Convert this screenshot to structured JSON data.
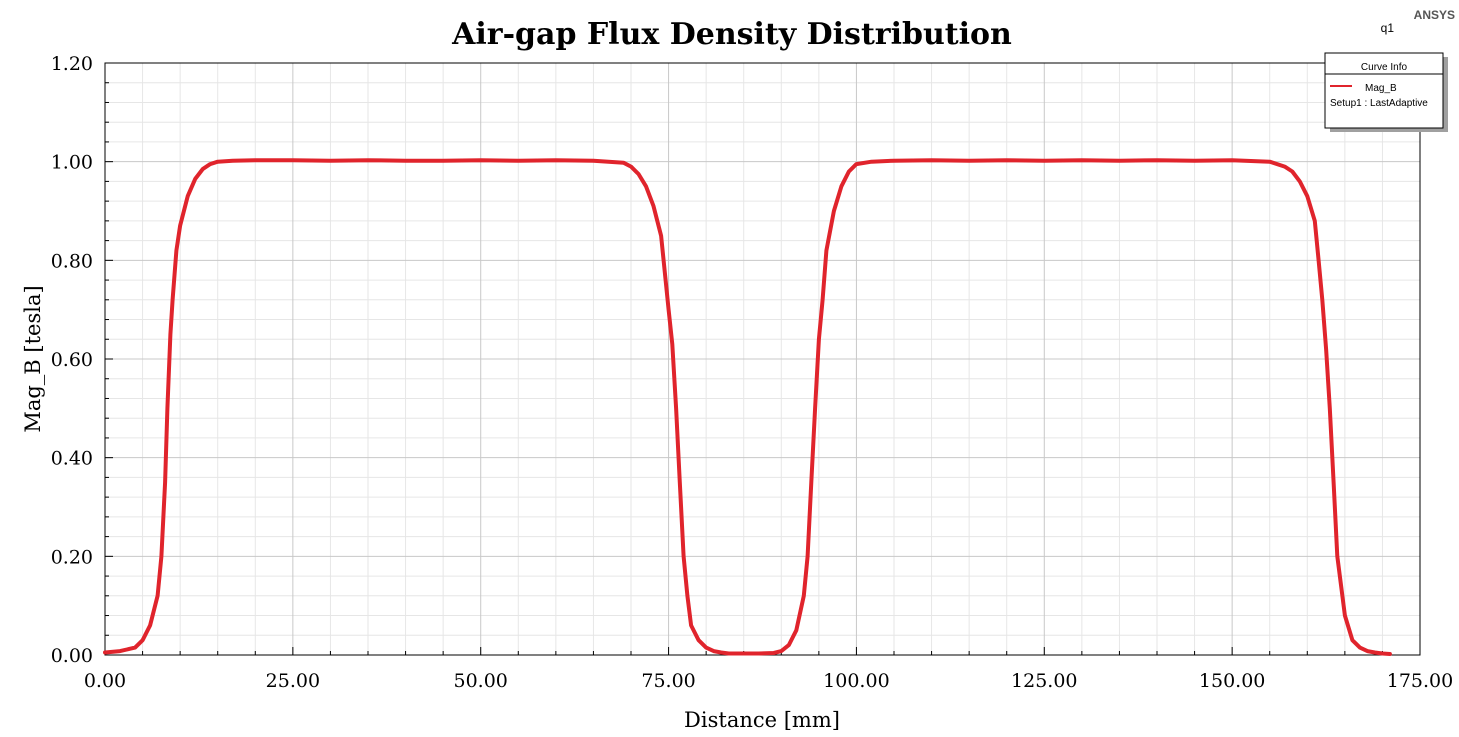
{
  "brand": "ANSYS",
  "plot_id": "q1",
  "legend": {
    "title": "Curve Info",
    "entry_name": "Mag_B",
    "entry_sub": "Setup1 : LastAdaptive"
  },
  "chart_data": {
    "type": "line",
    "title": "Air-gap Flux Density Distribution",
    "xlabel": "Distance [mm]",
    "ylabel": "Mag_B [tesla]",
    "xlim": [
      0,
      175
    ],
    "ylim": [
      0,
      1.2
    ],
    "x_ticks": [
      "0.00",
      "25.00",
      "50.00",
      "75.00",
      "100.00",
      "125.00",
      "150.00",
      "175.00"
    ],
    "y_ticks": [
      "0.00",
      "0.20",
      "0.40",
      "0.60",
      "0.80",
      "1.00",
      "1.20"
    ],
    "grid": true,
    "legend_position": "top-right",
    "colors": {
      "series": "#e0242c",
      "grid_major": "#c8c8c8",
      "grid_minor": "#e6e6e6"
    },
    "series": [
      {
        "name": "Mag_B",
        "x": [
          0,
          2,
          4,
          5,
          6,
          7,
          7.5,
          8,
          8.3,
          8.7,
          9,
          9.5,
          10,
          10.5,
          11,
          12,
          13,
          14,
          15,
          17,
          20,
          25,
          30,
          35,
          40,
          45,
          50,
          55,
          60,
          65,
          69,
          70,
          71,
          72,
          73,
          74,
          75,
          75.5,
          76,
          76.5,
          77,
          77.5,
          78,
          79,
          80,
          81,
          82,
          83,
          85,
          87,
          89,
          90,
          91,
          92,
          93,
          93.5,
          94,
          94.5,
          95,
          95.5,
          96,
          97,
          98,
          99,
          100,
          102,
          105,
          110,
          115,
          120,
          125,
          130,
          135,
          140,
          145,
          150,
          155,
          157,
          158,
          159,
          160,
          161,
          161.5,
          162,
          162.5,
          163,
          163.5,
          164,
          165,
          166,
          167,
          168,
          169,
          170,
          171
        ],
        "y": [
          0.005,
          0.008,
          0.015,
          0.03,
          0.06,
          0.12,
          0.2,
          0.35,
          0.5,
          0.65,
          0.72,
          0.82,
          0.87,
          0.9,
          0.93,
          0.965,
          0.985,
          0.995,
          1.0,
          1.002,
          1.003,
          1.003,
          1.002,
          1.003,
          1.002,
          1.002,
          1.003,
          1.002,
          1.003,
          1.002,
          0.998,
          0.99,
          0.975,
          0.95,
          0.91,
          0.85,
          0.7,
          0.63,
          0.5,
          0.35,
          0.2,
          0.12,
          0.06,
          0.03,
          0.015,
          0.008,
          0.005,
          0.003,
          0.003,
          0.003,
          0.004,
          0.008,
          0.02,
          0.05,
          0.12,
          0.2,
          0.35,
          0.5,
          0.64,
          0.72,
          0.82,
          0.9,
          0.95,
          0.98,
          0.995,
          1.0,
          1.002,
          1.003,
          1.002,
          1.003,
          1.002,
          1.003,
          1.002,
          1.003,
          1.002,
          1.003,
          1.0,
          0.99,
          0.98,
          0.96,
          0.93,
          0.88,
          0.8,
          0.72,
          0.62,
          0.5,
          0.35,
          0.2,
          0.08,
          0.03,
          0.015,
          0.008,
          0.005,
          0.003,
          0.002
        ]
      }
    ]
  }
}
